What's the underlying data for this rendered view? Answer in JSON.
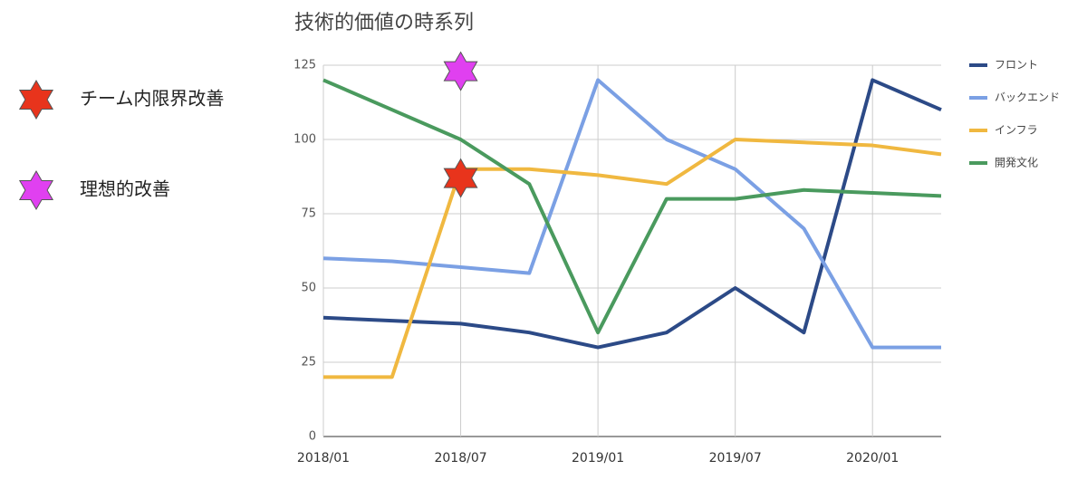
{
  "chart_data": {
    "type": "line",
    "title": "技術的価値の時系列",
    "categories": [
      "2018/01",
      null,
      "2018/07",
      null,
      "2019/01",
      null,
      "2019/07",
      null,
      "2020/01",
      null
    ],
    "series": [
      {
        "name": "フロント",
        "color": "#2c4a87",
        "values": [
          40,
          39,
          38,
          35,
          30,
          35,
          50,
          35,
          120,
          110
        ]
      },
      {
        "name": "バックエンド",
        "color": "#7ba0e4",
        "values": [
          60,
          59,
          57,
          55,
          120,
          100,
          90,
          70,
          30,
          30
        ]
      },
      {
        "name": "インフラ",
        "color": "#f0b840",
        "values": [
          20,
          20,
          90,
          90,
          88,
          85,
          100,
          99,
          98,
          95
        ]
      },
      {
        "name": "開発文化",
        "color": "#4a9a5e",
        "values": [
          120,
          110,
          100,
          85,
          35,
          80,
          80,
          83,
          82,
          81
        ]
      }
    ],
    "markers": [
      {
        "name": "チーム内限界改善",
        "color": "#e8341c",
        "x": "2018/07",
        "y": 87
      },
      {
        "name": "理想的改善",
        "color": "#e040f0",
        "x": "2018/07",
        "y": 123
      }
    ],
    "ylim": [
      0,
      125
    ],
    "yticks": [
      0,
      25,
      50,
      75,
      100,
      125
    ],
    "grid": true,
    "legend": "right"
  }
}
